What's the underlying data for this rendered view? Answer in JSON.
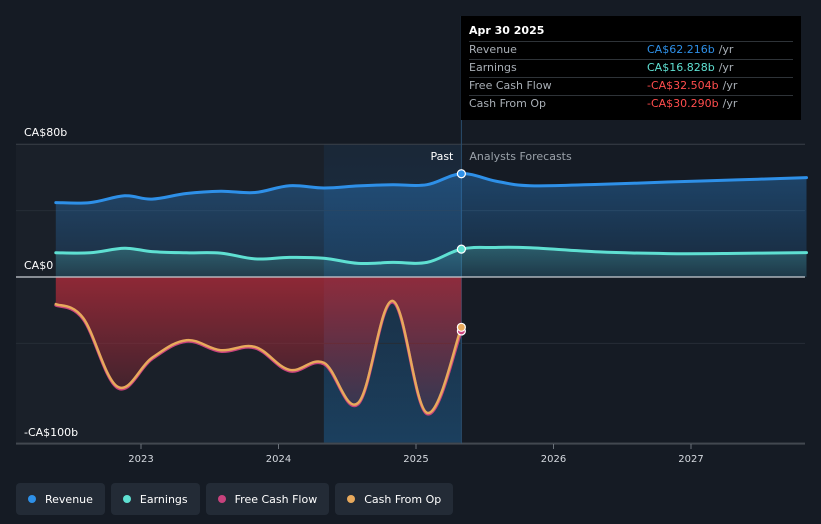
{
  "chart_data": {
    "type": "area",
    "y_unit": "CA$b",
    "ylim": [
      -100,
      80
    ],
    "y_tick_labels": [
      {
        "value": 80,
        "label": "CA$80b"
      },
      {
        "value": 0,
        "label": "CA$0"
      },
      {
        "value": -100,
        "label": "-CA$100b"
      }
    ],
    "x_tick_labels": [
      "2023",
      "2024",
      "2025",
      "2026",
      "2027"
    ],
    "x_ticks": [
      2023,
      2024,
      2025,
      2026,
      2027
    ],
    "xlim": [
      2022.13,
      2027.84
    ],
    "past_label": "Past",
    "forecast_label": "Analysts Forecasts",
    "forecast_start": 2025.33,
    "shaded_band_start": 2024.33,
    "series": [
      {
        "name": "Revenue",
        "color": "#2e90e8",
        "x": [
          2022.38,
          2022.63,
          2022.88,
          2023.08,
          2023.33,
          2023.58,
          2023.83,
          2024.08,
          2024.33,
          2024.58,
          2024.83,
          2025.08,
          2025.33,
          2025.58,
          2025.83,
          2026.33,
          2026.83,
          2027.33,
          2027.84
        ],
        "values": [
          44.8,
          44.8,
          48.9,
          46.9,
          50.3,
          51.7,
          50.9,
          55.0,
          53.6,
          54.9,
          55.6,
          55.6,
          62.2,
          57.8,
          55.0,
          55.8,
          57.2,
          58.5,
          59.9
        ]
      },
      {
        "name": "Earnings",
        "color": "#5fe0d2",
        "x": [
          2022.38,
          2022.63,
          2022.88,
          2023.08,
          2023.33,
          2023.58,
          2023.83,
          2024.08,
          2024.33,
          2024.58,
          2024.83,
          2025.08,
          2025.33,
          2025.58,
          2025.83,
          2026.33,
          2026.83,
          2027.33,
          2027.84
        ],
        "values": [
          14.6,
          14.6,
          17.3,
          15.3,
          14.6,
          14.4,
          10.9,
          11.8,
          11.3,
          8.2,
          8.8,
          8.8,
          16.8,
          17.8,
          17.6,
          15.1,
          14.1,
          14.2,
          14.7
        ]
      },
      {
        "name": "Free Cash Flow",
        "color": "#c8427d",
        "x": [
          2022.38,
          2022.58,
          2022.83,
          2023.08,
          2023.33,
          2023.58,
          2023.83,
          2024.08,
          2024.33,
          2024.58,
          2024.83,
          2025.08,
          2025.33
        ],
        "values": [
          -17.0,
          -25.4,
          -66.8,
          -49.4,
          -38.8,
          -44.8,
          -42.8,
          -56.6,
          -52.4,
          -76.5,
          -15.1,
          -82.5,
          -32.5
        ]
      },
      {
        "name": "Cash From Op",
        "color": "#e8a95c",
        "x": [
          2022.38,
          2022.58,
          2022.83,
          2023.08,
          2023.33,
          2023.58,
          2023.83,
          2024.08,
          2024.33,
          2024.58,
          2024.83,
          2025.08,
          2025.33
        ],
        "values": [
          -16.3,
          -24.7,
          -66.1,
          -48.7,
          -38.1,
          -44.1,
          -42.1,
          -55.9,
          -51.7,
          -75.8,
          -14.4,
          -81.8,
          -30.3
        ]
      }
    ],
    "tooltip": {
      "date": "Apr 30 2025",
      "rows": [
        {
          "name": "Revenue",
          "value": "CA$62.216b",
          "unit": "/yr",
          "color": "#2e90e8"
        },
        {
          "name": "Earnings",
          "value": "CA$16.828b",
          "unit": "/yr",
          "color": "#5fe0d2"
        },
        {
          "name": "Free Cash Flow",
          "value": "-CA$32.504b",
          "unit": "/yr",
          "color": "#ff4d4d"
        },
        {
          "name": "Cash From Op",
          "value": "-CA$30.290b",
          "unit": "/yr",
          "color": "#ff4d4d"
        }
      ]
    },
    "legend": [
      {
        "name": "Revenue",
        "color": "#2e90e8"
      },
      {
        "name": "Earnings",
        "color": "#5fe0d2"
      },
      {
        "name": "Free Cash Flow",
        "color": "#c8427d"
      },
      {
        "name": "Cash From Op",
        "color": "#e8a95c"
      }
    ]
  }
}
